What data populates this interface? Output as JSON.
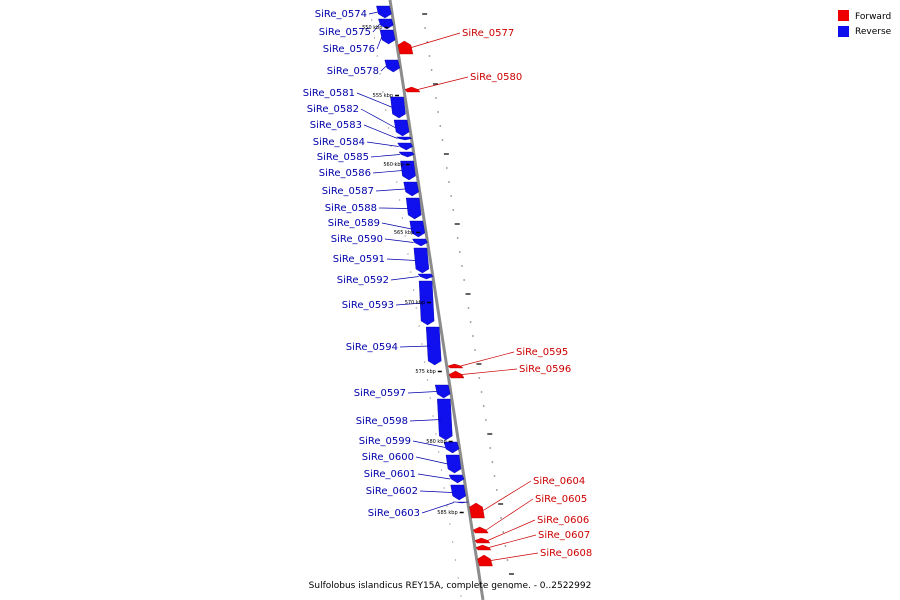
{
  "title": "Sulfolobus islandicus REY15A, complete genome. - 0..2522992",
  "colors": {
    "forward": "#ee0000",
    "reverse": "#1010ee",
    "backbone": "#8c8c8c",
    "forward_label": "#cc0000",
    "reverse_label": "#0000aa"
  },
  "legend": [
    {
      "label": "Forward",
      "strand": "forward"
    },
    {
      "label": "Reverse",
      "strand": "reverse"
    }
  ],
  "chart_data": {
    "type": "linear-genome-map",
    "kbp_marks": [
      {
        "label": "550 kbp",
        "kbp": 550
      },
      {
        "label": "555 kbp",
        "kbp": 555
      },
      {
        "label": "560 kbp",
        "kbp": 560
      },
      {
        "label": "565 kbp",
        "kbp": 565
      },
      {
        "label": "570 kbp",
        "kbp": 570
      },
      {
        "label": "575 kbp",
        "kbp": 575
      },
      {
        "label": "580 kbp",
        "kbp": 580
      },
      {
        "label": "585 kbp",
        "kbp": 585
      }
    ],
    "genes": [
      {
        "name": "SiRe_0574",
        "strand": "reverse"
      },
      {
        "name": "SiRe_0575",
        "strand": "reverse"
      },
      {
        "name": "SiRe_0576",
        "strand": "reverse"
      },
      {
        "name": "SiRe_0577",
        "strand": "forward"
      },
      {
        "name": "SiRe_0578",
        "strand": "reverse"
      },
      {
        "name": "SiRe_0580",
        "strand": "forward"
      },
      {
        "name": "SiRe_0581",
        "strand": "reverse"
      },
      {
        "name": "SiRe_0582",
        "strand": "reverse"
      },
      {
        "name": "SiRe_0583",
        "strand": "reverse"
      },
      {
        "name": "SiRe_0584",
        "strand": "reverse"
      },
      {
        "name": "SiRe_0585",
        "strand": "reverse"
      },
      {
        "name": "SiRe_0586",
        "strand": "reverse"
      },
      {
        "name": "SiRe_0587",
        "strand": "reverse"
      },
      {
        "name": "SiRe_0588",
        "strand": "reverse"
      },
      {
        "name": "SiRe_0589",
        "strand": "reverse"
      },
      {
        "name": "SiRe_0590",
        "strand": "reverse"
      },
      {
        "name": "SiRe_0591",
        "strand": "reverse"
      },
      {
        "name": "SiRe_0592",
        "strand": "reverse"
      },
      {
        "name": "SiRe_0593",
        "strand": "reverse"
      },
      {
        "name": "SiRe_0594",
        "strand": "reverse"
      },
      {
        "name": "SiRe_0595",
        "strand": "forward"
      },
      {
        "name": "SiRe_0596",
        "strand": "forward"
      },
      {
        "name": "SiRe_0597",
        "strand": "reverse"
      },
      {
        "name": "SiRe_0598",
        "strand": "reverse"
      },
      {
        "name": "SiRe_0599",
        "strand": "reverse"
      },
      {
        "name": "SiRe_0600",
        "strand": "reverse"
      },
      {
        "name": "SiRe_0601",
        "strand": "reverse"
      },
      {
        "name": "SiRe_0602",
        "strand": "reverse"
      },
      {
        "name": "SiRe_0603",
        "strand": "reverse"
      },
      {
        "name": "SiRe_0604",
        "strand": "forward"
      },
      {
        "name": "SiRe_0605",
        "strand": "forward"
      },
      {
        "name": "SiRe_0606",
        "strand": "forward"
      },
      {
        "name": "SiRe_0607",
        "strand": "forward"
      },
      {
        "name": "SiRe_0608",
        "strand": "forward"
      }
    ]
  }
}
